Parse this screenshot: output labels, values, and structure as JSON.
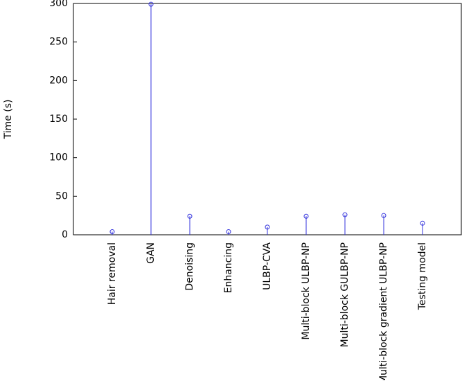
{
  "chart_data": {
    "type": "stem",
    "ylabel": "Time (s)",
    "categories": [
      "Hair removal",
      "GAN",
      "Denoising",
      "Enhancing",
      "ULBP-CVA",
      "Multi-block ULBP-NP",
      "Multi-block GULBP-NP",
      "Multi-block gradient ULBP-NP",
      "Testing model"
    ],
    "values": [
      4,
      299,
      24,
      4,
      10,
      24,
      26,
      25,
      15
    ],
    "color": "#3333dd",
    "ylim": [
      0,
      300
    ],
    "yticks": [
      0,
      50,
      100,
      150,
      200,
      250,
      300
    ]
  }
}
